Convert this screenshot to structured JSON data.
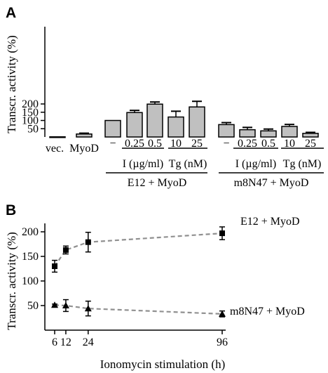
{
  "colors": {
    "bar_fill": "#c0c0c0",
    "ink": "#000000",
    "dashed_line": "#909090"
  },
  "chart_data": [
    {
      "panel": "A",
      "type": "bar",
      "ylabel": "Transcr. activity (%)",
      "ylim": [
        0,
        225
      ],
      "yticks": [
        50,
        100,
        150,
        200
      ],
      "bars": [
        {
          "label": "vec.",
          "value": 1,
          "err": 0
        },
        {
          "label": "MyoD",
          "value": 18,
          "err": 5
        },
        {
          "label": "−",
          "value": 100,
          "err": 0
        },
        {
          "label": "0.25",
          "value": 148,
          "err": 13
        },
        {
          "label": "0.5",
          "value": 199,
          "err": 13
        },
        {
          "label": "10",
          "value": 121,
          "err": 35
        },
        {
          "label": "25",
          "value": 182,
          "err": 34
        },
        {
          "label": "−",
          "value": 75,
          "err": 12
        },
        {
          "label": "0.25",
          "value": 44,
          "err": 14
        },
        {
          "label": "0.5",
          "value": 37,
          "err": 11
        },
        {
          "label": "10",
          "value": 64,
          "err": 12
        },
        {
          "label": "25",
          "value": 22,
          "err": 6
        }
      ],
      "sublabels": [
        "I (µg/ml)",
        "Tg (nM)",
        "I (µg/ml)",
        "Tg (nM)"
      ],
      "group_labels": [
        "E12 + MyoD",
        "m8N47 + MyoD"
      ]
    },
    {
      "panel": "B",
      "type": "line",
      "xlabel": "Ionomycin stimulation (h)",
      "ylabel": "Transcr. activity (%)",
      "xticks": [
        6,
        12,
        24,
        96
      ],
      "yticks": [
        50,
        100,
        150,
        200
      ],
      "ylim": [
        0,
        225
      ],
      "series": [
        {
          "name": "E12 + MyoD",
          "marker": "square",
          "x": [
            6,
            12,
            24,
            96
          ],
          "y": [
            130,
            163,
            179,
            197
          ],
          "err": [
            12,
            8,
            20,
            13
          ]
        },
        {
          "name": "m8N47 + MyoD",
          "marker": "triangle",
          "x": [
            6,
            12,
            24,
            96
          ],
          "y": [
            51,
            50,
            44,
            33
          ],
          "err": [
            2,
            12,
            15,
            6
          ]
        }
      ]
    }
  ]
}
